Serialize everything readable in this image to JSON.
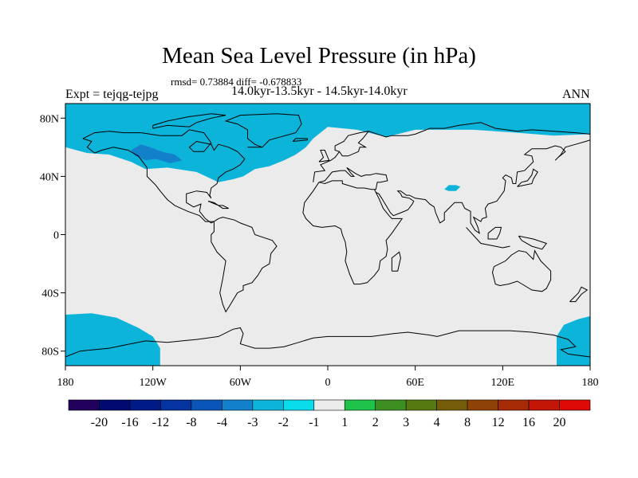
{
  "chart_data": {
    "type": "heatmap",
    "title": "Mean Sea Level Pressure (in hPa)",
    "stats": "rmsd= 0.73884 diff= -0.678833",
    "period": "14.0kyr-13.5kyr - 14.5kyr-14.0kyr",
    "experiment": "Expt = tejqg-tejpg",
    "season": "ANN",
    "xlim": [
      -180,
      180
    ],
    "ylim": [
      -90,
      90
    ],
    "x_ticks": [
      {
        "value": -180,
        "label": "180"
      },
      {
        "value": -120,
        "label": "120W"
      },
      {
        "value": -60,
        "label": "60W"
      },
      {
        "value": 0,
        "label": "0"
      },
      {
        "value": 60,
        "label": "60E"
      },
      {
        "value": 120,
        "label": "120E"
      },
      {
        "value": 180,
        "label": "180"
      }
    ],
    "y_ticks": [
      {
        "value": 80,
        "label": "80N"
      },
      {
        "value": 40,
        "label": "40N"
      },
      {
        "value": 0,
        "label": "0"
      },
      {
        "value": -40,
        "label": "40S"
      },
      {
        "value": -80,
        "label": "80S"
      }
    ],
    "background_bin": "-1 to 1",
    "anomaly_regions": [
      {
        "name": "Arctic / North Atlantic / North America",
        "bin": "-2 to -1",
        "lon": [
          -180,
          180
        ],
        "lat": [
          40,
          90
        ]
      },
      {
        "name": "Western Canada",
        "bin": "-3 to -2",
        "lon": [
          -135,
          -100
        ],
        "lat": [
          50,
          62
        ]
      },
      {
        "name": "Central Asia",
        "bin": "-2 to -1",
        "lon": [
          80,
          90
        ],
        "lat": [
          30,
          35
        ]
      },
      {
        "name": "South Pacific",
        "bin": "-2 to -1",
        "lon": [
          -180,
          -115
        ],
        "lat": [
          -90,
          -55
        ]
      },
      {
        "name": "Southwest Pacific",
        "bin": "-2 to -1",
        "lon": [
          155,
          180
        ],
        "lat": [
          -90,
          -55
        ]
      }
    ],
    "colorbar": {
      "labels": [
        "-20",
        "-16",
        "-12",
        "-8",
        "-4",
        "-3",
        "-2",
        "-1",
        "1",
        "2",
        "3",
        "4",
        "8",
        "12",
        "16",
        "20"
      ],
      "colors": [
        "#20005a",
        "#000a70",
        "#001a86",
        "#0534a0",
        "#0a56b8",
        "#1380cc",
        "#0cb4da",
        "#0bdcec",
        "#ebebeb",
        "#1ec34a",
        "#3e8f22",
        "#567912",
        "#745c0a",
        "#8e4206",
        "#a62a06",
        "#c41606",
        "#dd0a06"
      ]
    },
    "land_color": "#ebebeb",
    "coastline_color": "#000000"
  }
}
